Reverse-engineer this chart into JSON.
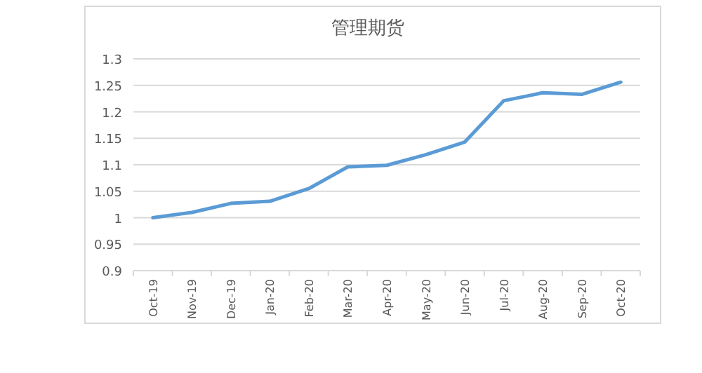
{
  "chart_data": {
    "type": "line",
    "title": "管理期货",
    "categories": [
      "Oct-19",
      "Nov-19",
      "Dec-19",
      "Jan-20",
      "Feb-20",
      "Mar-20",
      "Apr-20",
      "May-20",
      "Jun-20",
      "Jul-20",
      "Aug-20",
      "Sep-20",
      "Oct-20"
    ],
    "values": [
      1.0,
      1.01,
      1.027,
      1.031,
      1.055,
      1.096,
      1.099,
      1.119,
      1.143,
      1.221,
      1.236,
      1.233,
      1.256
    ],
    "color": "#5b9bd5",
    "ylim": [
      0.9,
      1.3
    ],
    "yticks": [
      0.9,
      0.95,
      1,
      1.05,
      1.1,
      1.15,
      1.2,
      1.25,
      1.3
    ],
    "grid": "y"
  }
}
